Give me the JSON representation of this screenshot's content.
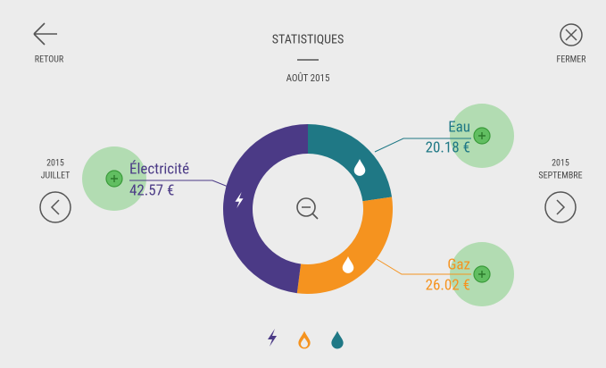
{
  "header": {
    "back": "RETOUR",
    "title": "STATISTIQUES",
    "date": "AOÛT 2015",
    "close": "FERMER"
  },
  "nav": {
    "prev_year": "2015",
    "prev_month": "JUILLET",
    "next_year": "2015",
    "next_month": "SEPTEMBRE"
  },
  "chart_data": {
    "type": "donut",
    "categories": [
      "Eau",
      "Gaz",
      "Électricité"
    ],
    "values": [
      20.18,
      26.02,
      42.57
    ],
    "value_labels": [
      "20.18 €",
      "26.02 €",
      "42.57 €"
    ],
    "colors": [
      "#1f7885",
      "#f5931f",
      "#4b3a86"
    ]
  }
}
